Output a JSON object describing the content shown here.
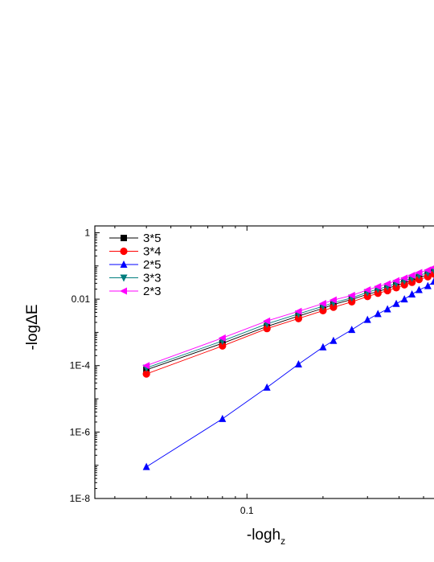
{
  "chart_data": {
    "type": "line",
    "xscale": "log",
    "yscale": "log",
    "xlabel": "-logh",
    "xlabel_sub": "z",
    "ylabel": "-logΔE",
    "xlim": [
      0.025,
      0.55
    ],
    "ylim": [
      1e-08,
      1.6
    ],
    "x_ticks": [
      {
        "value": 0.1,
        "label": "0.1"
      }
    ],
    "y_ticks": [
      {
        "value": 1,
        "label": "1"
      },
      {
        "value": 0.01,
        "label": "0.01"
      },
      {
        "value": 0.0001,
        "label": "1E-4"
      },
      {
        "value": 1e-06,
        "label": "1E-6"
      },
      {
        "value": 1e-08,
        "label": "1E-8"
      }
    ],
    "legend_position": "top-left",
    "series": [
      {
        "name": "3*5",
        "color": "#000000",
        "marker": "square",
        "points": [
          [
            0.04,
            7.5e-05
          ],
          [
            0.08,
            0.00047
          ],
          [
            0.12,
            0.0015
          ],
          [
            0.16,
            0.0031
          ],
          [
            0.2,
            0.0053
          ],
          [
            0.22,
            0.0069
          ],
          [
            0.26,
            0.0098
          ],
          [
            0.3,
            0.014
          ],
          [
            0.33,
            0.017
          ],
          [
            0.36,
            0.021
          ],
          [
            0.39,
            0.026
          ],
          [
            0.42,
            0.031
          ],
          [
            0.45,
            0.037
          ],
          [
            0.48,
            0.045
          ],
          [
            0.52,
            0.054
          ],
          [
            0.55,
            0.066
          ]
        ]
      },
      {
        "name": "3*4",
        "color": "#ff0000",
        "marker": "circle",
        "points": [
          [
            0.04,
            5.6e-05
          ],
          [
            0.08,
            0.00039
          ],
          [
            0.12,
            0.0013
          ],
          [
            0.16,
            0.0026
          ],
          [
            0.2,
            0.0045
          ],
          [
            0.22,
            0.0057
          ],
          [
            0.26,
            0.0083
          ],
          [
            0.3,
            0.012
          ],
          [
            0.33,
            0.015
          ],
          [
            0.36,
            0.018
          ],
          [
            0.39,
            0.022
          ],
          [
            0.42,
            0.027
          ],
          [
            0.45,
            0.032
          ],
          [
            0.48,
            0.039
          ],
          [
            0.52,
            0.047
          ],
          [
            0.55,
            0.057
          ]
        ]
      },
      {
        "name": "2*5",
        "color": "#0000ff",
        "marker": "triangle-up",
        "points": [
          [
            0.04,
            9e-08
          ],
          [
            0.08,
            2.5e-06
          ],
          [
            0.12,
            2.2e-05
          ],
          [
            0.16,
            0.00011
          ],
          [
            0.2,
            0.00036
          ],
          [
            0.22,
            0.00056
          ],
          [
            0.26,
            0.0012
          ],
          [
            0.3,
            0.0024
          ],
          [
            0.33,
            0.0036
          ],
          [
            0.36,
            0.005
          ],
          [
            0.39,
            0.0073
          ],
          [
            0.42,
            0.01
          ],
          [
            0.45,
            0.014
          ],
          [
            0.48,
            0.019
          ],
          [
            0.52,
            0.025
          ],
          [
            0.55,
            0.034
          ]
        ]
      },
      {
        "name": "3*3",
        "color": "#007d7d",
        "marker": "triangle-down",
        "points": [
          [
            0.04,
            8.5e-05
          ],
          [
            0.08,
            0.00055
          ],
          [
            0.12,
            0.0018
          ],
          [
            0.16,
            0.0036
          ],
          [
            0.2,
            0.0061
          ],
          [
            0.22,
            0.0078
          ],
          [
            0.26,
            0.011
          ],
          [
            0.3,
            0.016
          ],
          [
            0.33,
            0.02
          ],
          [
            0.36,
            0.024
          ],
          [
            0.39,
            0.03
          ],
          [
            0.42,
            0.036
          ],
          [
            0.45,
            0.043
          ],
          [
            0.48,
            0.052
          ],
          [
            0.52,
            0.062
          ],
          [
            0.55,
            0.075
          ]
        ]
      },
      {
        "name": "2*3",
        "color": "#ff00ff",
        "marker": "triangle-left",
        "points": [
          [
            0.04,
            0.0001
          ],
          [
            0.08,
            0.00068
          ],
          [
            0.12,
            0.0022
          ],
          [
            0.16,
            0.0043
          ],
          [
            0.2,
            0.0074
          ],
          [
            0.22,
            0.0094
          ],
          [
            0.26,
            0.013
          ],
          [
            0.3,
            0.019
          ],
          [
            0.33,
            0.024
          ],
          [
            0.36,
            0.029
          ],
          [
            0.39,
            0.036
          ],
          [
            0.42,
            0.043
          ],
          [
            0.45,
            0.052
          ],
          [
            0.48,
            0.063
          ],
          [
            0.52,
            0.075
          ],
          [
            0.55,
            0.09
          ]
        ]
      }
    ]
  }
}
